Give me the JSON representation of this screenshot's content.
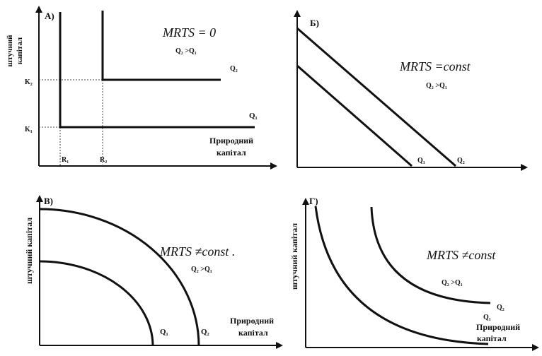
{
  "panels": [
    {
      "id": "a",
      "letter": "А)",
      "y_axis_label_line1": "штучний",
      "y_axis_label_line2": "капітал",
      "x_axis_label_line1": "Природний",
      "x_axis_label_line2": "капітал",
      "formula": "MRTS = 0",
      "comparison": "Q₂ >Q₁",
      "curve_labels": [
        "Q₂",
        "Q₁"
      ],
      "y_ticks": [
        "K₂",
        "K₁"
      ],
      "x_ticks": [
        "R₁",
        "R₂"
      ]
    },
    {
      "id": "b",
      "letter": "Б)",
      "formula": "MRTS =const",
      "comparison": "Q₂ >Q₁",
      "curve_labels": [
        "Q₁",
        "Q₂"
      ]
    },
    {
      "id": "c",
      "letter": "В)",
      "y_axis_label": "штучний капітал",
      "x_axis_label_line1": "Природний",
      "x_axis_label_line2": "капітал",
      "formula": "MRTS ≠const .",
      "comparison": "Q₂ >Q₁",
      "curve_labels": [
        "Q₁",
        "Q₂"
      ]
    },
    {
      "id": "d",
      "letter": "Г)",
      "y_axis_label": "штучний капітал",
      "x_axis_label_line1": "Природний",
      "x_axis_label_line2": "капітал",
      "formula": "MRTS ≠const",
      "comparison": "Q₂ >Q₁",
      "curve_labels": [
        "Q₂",
        "Q₁"
      ]
    }
  ]
}
